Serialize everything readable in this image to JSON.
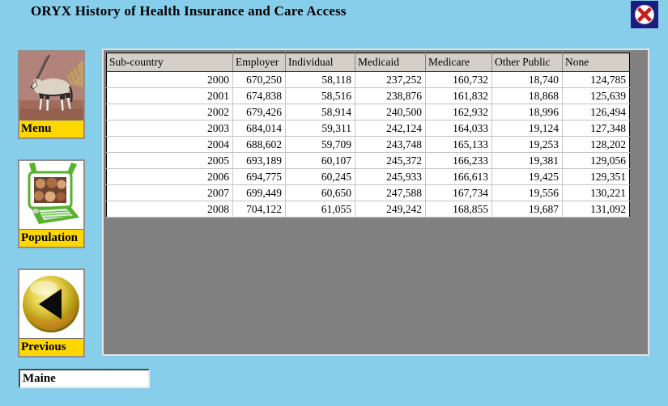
{
  "window": {
    "title": "ORYX History of Health Insurance and Care Access"
  },
  "sidebar": {
    "buttons": [
      {
        "id": "menu",
        "label": "Menu",
        "icon": "oryx-photo-icon"
      },
      {
        "id": "population",
        "label": "Population",
        "icon": "laptop-children-photo-icon"
      },
      {
        "id": "previous",
        "label": "Previous",
        "icon": "back-arrow-orb-icon"
      }
    ]
  },
  "grid": {
    "columns": [
      "Sub-country",
      "Employer",
      "Individual",
      "Medicaid",
      "Medicare",
      "Other Public",
      "None"
    ],
    "rows": [
      [
        "2000",
        "670,250",
        "58,118",
        "237,252",
        "160,732",
        "18,740",
        "124,785"
      ],
      [
        "2001",
        "674,838",
        "58,516",
        "238,876",
        "161,832",
        "18,868",
        "125,639"
      ],
      [
        "2002",
        "679,426",
        "58,914",
        "240,500",
        "162,932",
        "18,996",
        "126,494"
      ],
      [
        "2003",
        "684,014",
        "59,311",
        "242,124",
        "164,033",
        "19,124",
        "127,348"
      ],
      [
        "2004",
        "688,602",
        "59,709",
        "243,748",
        "165,133",
        "19,253",
        "128,202"
      ],
      [
        "2005",
        "693,189",
        "60,107",
        "245,372",
        "166,233",
        "19,381",
        "129,056"
      ],
      [
        "2006",
        "694,775",
        "60,245",
        "245,933",
        "166,613",
        "19,425",
        "129,351"
      ],
      [
        "2007",
        "699,449",
        "60,650",
        "247,588",
        "167,734",
        "19,556",
        "130,221"
      ],
      [
        "2008",
        "704,122",
        "61,055",
        "249,242",
        "168,855",
        "19,687",
        "131,092"
      ]
    ]
  },
  "region_box": {
    "value": "Maine"
  },
  "colors": {
    "background": "#87CEEB",
    "panel_gray": "#808080",
    "grid_header": "#D4D0C8",
    "button_label_yellow": "#FFD700",
    "close_navy": "#1C1C7E",
    "close_x_red": "#C41E1E",
    "oryx_photo_bg": "#B1837B"
  }
}
